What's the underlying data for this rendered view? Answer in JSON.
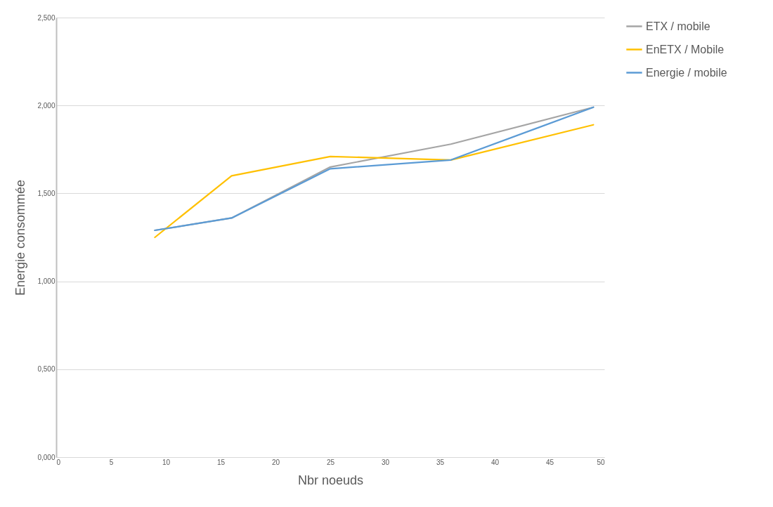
{
  "chart_data": {
    "type": "line",
    "xlabel": "Nbr noeuds",
    "ylabel": "Energie consommée",
    "x": [
      9,
      16,
      25,
      36,
      49
    ],
    "series": [
      {
        "name": "ETX / mobile",
        "color": "#a5a5a5",
        "values": [
          1.29,
          1.36,
          1.65,
          1.78,
          1.99
        ]
      },
      {
        "name": "EnETX / Mobile",
        "color": "#ffc000",
        "values": [
          1.25,
          1.6,
          1.71,
          1.69,
          1.89
        ]
      },
      {
        "name": "Energie / mobile",
        "color": "#5b9bd5",
        "values": [
          1.29,
          1.36,
          1.64,
          1.69,
          1.99
        ]
      }
    ],
    "xlim": [
      0,
      50
    ],
    "xticks": [
      0,
      5,
      10,
      15,
      20,
      25,
      30,
      35,
      40,
      45,
      50
    ],
    "ylim": [
      0,
      2.5
    ],
    "yticks": [
      {
        "value": 0,
        "label": "0,000"
      },
      {
        "value": 0.5,
        "label": "0,500"
      },
      {
        "value": 1,
        "label": "1,000"
      },
      {
        "value": 1.5,
        "label": "1,500"
      },
      {
        "value": 2,
        "label": "2,000"
      },
      {
        "value": 2.5,
        "label": "2,500"
      }
    ],
    "grid": "y",
    "legend": "right",
    "marker": "none",
    "line_style": "solid"
  }
}
